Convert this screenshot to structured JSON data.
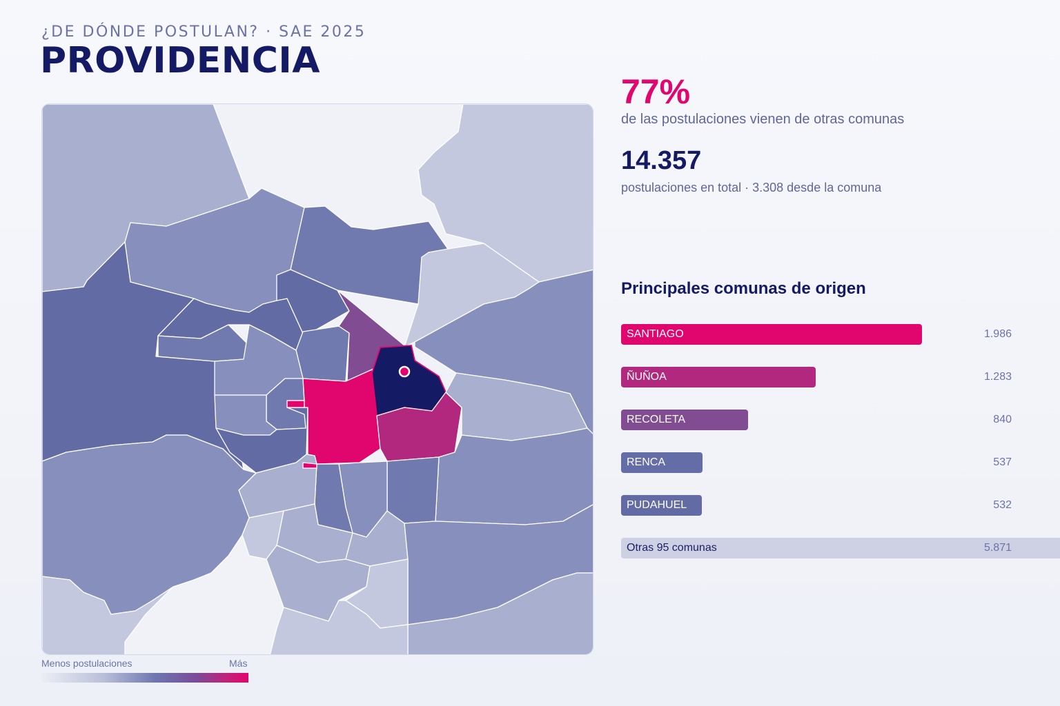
{
  "header": {
    "subtitle": "¿DE DÓNDE POSTULAN? · SAE 2025",
    "title": "PROVIDENCIA"
  },
  "stats": {
    "percent": "77%",
    "percent_desc": "de las postulaciones vienen de otras comunas",
    "total": "14.357",
    "total_desc": "postulaciones en total · 3.308 desde la comuna"
  },
  "ranking": {
    "title": "Principales comunas de origen",
    "max_value": 1986,
    "items": [
      {
        "name": "SANTIAGO",
        "value": 1986,
        "value_label": "1.986",
        "color": "#e0066e"
      },
      {
        "name": "ÑUÑOA",
        "value": 1283,
        "value_label": "1.283",
        "color": "#b2287e"
      },
      {
        "name": "RECOLETA",
        "value": 840,
        "value_label": "840",
        "color": "#824c92"
      },
      {
        "name": "RENCA",
        "value": 537,
        "value_label": "537",
        "color": "#656da6"
      },
      {
        "name": "PUDAHUEL",
        "value": 532,
        "value_label": "532",
        "color": "#636ba4"
      }
    ],
    "others": {
      "label": "Otras 95 comunas",
      "value": 5871,
      "value_label": "5.871"
    }
  },
  "legend": {
    "min_label": "Menos postulaciones",
    "max_label": "Más"
  },
  "map": {
    "highlight_color": "#141a63",
    "marker_icon": "location-marker-icon",
    "palette": {
      "lightest": "#c3c8de",
      "light": "#a9b0cf",
      "mid": "#8790bc",
      "dark": "#717aae",
      "darker": "#636ba4",
      "purple": "#824c92",
      "magenta": "#b2287e",
      "pink": "#e0066e"
    }
  }
}
